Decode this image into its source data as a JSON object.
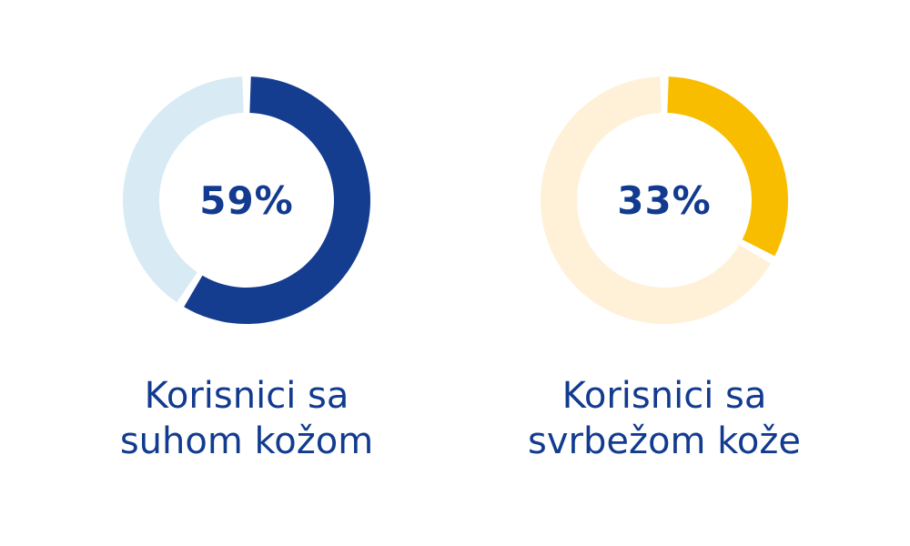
{
  "chart_data": [
    {
      "type": "pie",
      "style": "donut",
      "values": [
        59,
        41
      ],
      "value_label": "59%",
      "caption_lines": [
        "Korisnici sa",
        "suhom kožom"
      ],
      "colors": {
        "value": "#143c8f",
        "rest": "#d8eaf4"
      }
    },
    {
      "type": "pie",
      "style": "donut",
      "values": [
        33,
        67
      ],
      "value_label": "33%",
      "caption_lines": [
        "Korisnici sa",
        "svrbežom kože"
      ],
      "colors": {
        "value": "#f9bd00",
        "rest": "#fff0d8"
      }
    }
  ]
}
